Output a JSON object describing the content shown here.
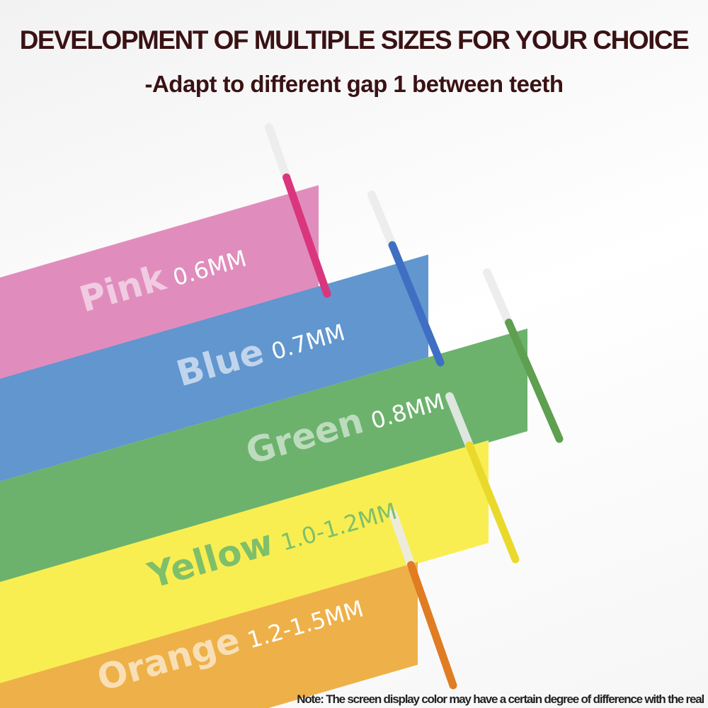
{
  "header": {
    "title": "DEVELOPMENT OF MULTIPLE SIZES FOR YOUR CHOICE",
    "subtitle": "-Adapt to different gap 1 between teeth"
  },
  "sizes": [
    {
      "color": "Pink",
      "size": "0.6MM",
      "fill": "#e08dbd",
      "brush": "#d9367e",
      "text": "rgba(255,255,255,0.55)",
      "size_text": "#ffffff"
    },
    {
      "color": "Blue",
      "size": "0.7MM",
      "fill": "#6196cf",
      "brush": "#3f6fc2",
      "text": "rgba(255,255,255,0.6)",
      "size_text": "#ffffff"
    },
    {
      "color": "Green",
      "size": "0.8MM",
      "fill": "#6cb26d",
      "brush": "#5f9f50",
      "text": "rgba(255,255,255,0.55)",
      "size_text": "#ffffff"
    },
    {
      "color": "Yellow",
      "size": "1.0-1.2MM",
      "fill": "#f8ee52",
      "brush": "#e9d92a",
      "text": "#7fbf6a",
      "size_text": "#7fbf6a"
    },
    {
      "color": "Orange",
      "size": "1.2-1.5MM",
      "fill": "#eeb048",
      "brush": "#e07c22",
      "text": "rgba(255,255,255,0.6)",
      "size_text": "#ffffff"
    }
  ],
  "note": "Note: The screen display color may have a certain degree of difference with the real"
}
